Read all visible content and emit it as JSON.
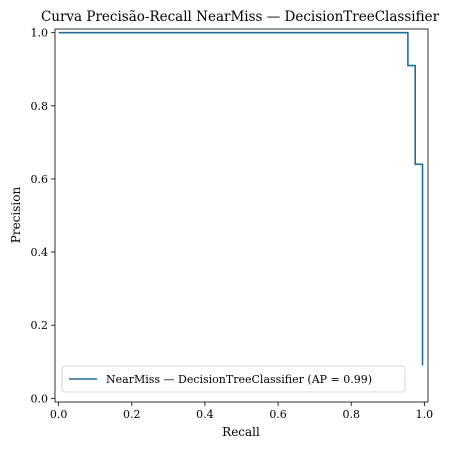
{
  "chart_data": {
    "type": "line",
    "drawstyle": "steps-post",
    "title": "Curva Precisão-Recall NearMiss — DecisionTreeClassifier",
    "xlabel": "Recall",
    "ylabel": "Precision",
    "xlim": [
      -0.01,
      1.01
    ],
    "ylim": [
      -0.01,
      1.01
    ],
    "xticks": [
      0.0,
      0.2,
      0.4,
      0.6,
      0.8,
      1.0
    ],
    "xtick_labels": [
      "0.0",
      "0.2",
      "0.4",
      "0.6",
      "0.8",
      "1.0"
    ],
    "yticks": [
      0.0,
      0.2,
      0.4,
      0.6,
      0.8,
      1.0
    ],
    "ytick_labels": [
      "0.0",
      "0.2",
      "0.4",
      "0.6",
      "0.8",
      "1.0"
    ],
    "grid": false,
    "legend": {
      "position": "lower-left"
    },
    "series": [
      {
        "name": "NearMiss — DecisionTreeClassifier (AP = 0.99)",
        "color": "#1f6f9a",
        "points": [
          {
            "recall": 0.0,
            "precision": 1.0
          },
          {
            "recall": 0.955,
            "precision": 1.0
          },
          {
            "recall": 0.955,
            "precision": 0.91
          },
          {
            "recall": 0.975,
            "precision": 0.91
          },
          {
            "recall": 0.975,
            "precision": 0.64
          },
          {
            "recall": 0.995,
            "precision": 0.64
          },
          {
            "recall": 0.995,
            "precision": 0.09
          }
        ]
      }
    ]
  }
}
